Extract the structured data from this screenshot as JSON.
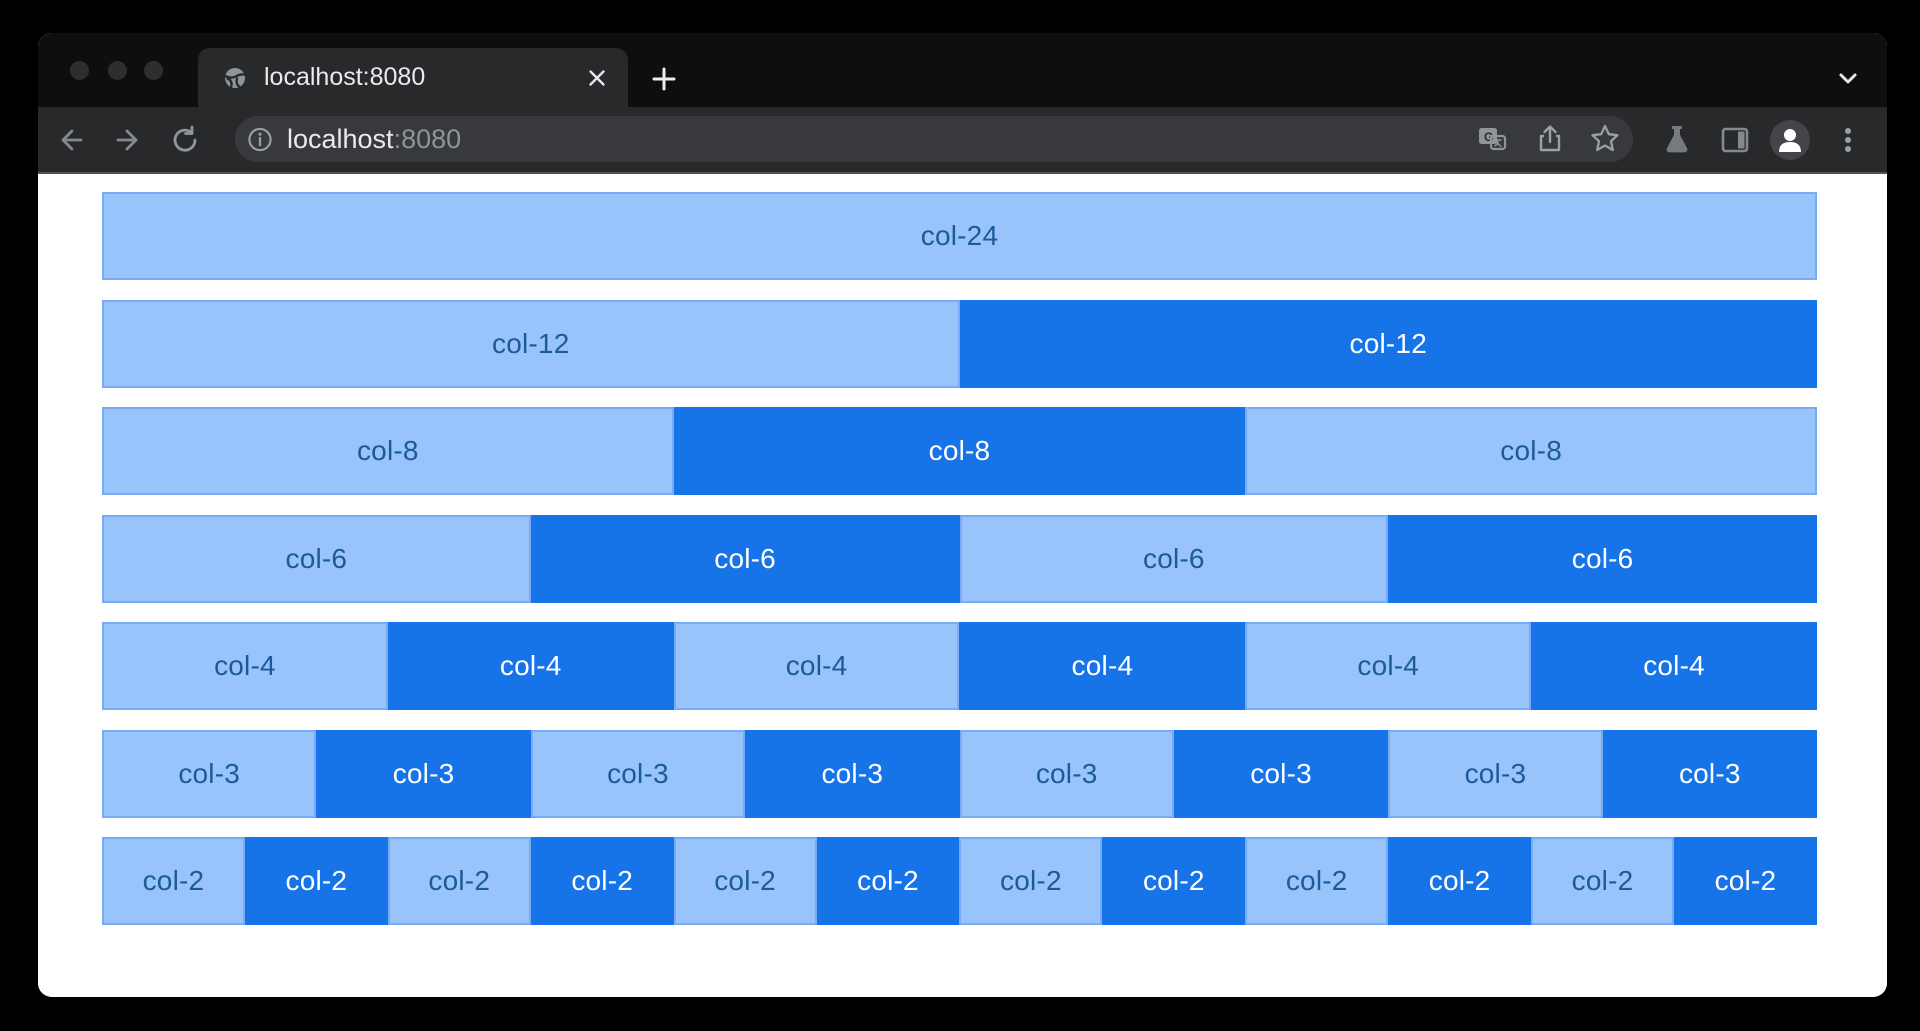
{
  "window": {
    "traffic_lights": [
      "close-button",
      "minimize-button",
      "fullscreen-button"
    ]
  },
  "tab_bar": {
    "active_tab": {
      "favicon": "globe-icon",
      "title": "localhost:8080",
      "close_icon": "close-icon"
    },
    "new_tab_icon": "plus-icon",
    "overflow_icon": "chevron-down-icon"
  },
  "toolbar": {
    "nav_icons": [
      "back-arrow-icon",
      "forward-arrow-icon",
      "reload-icon"
    ],
    "url_field": {
      "security_icon": "info-icon",
      "host": "localhost",
      "port_suffix": ":8080",
      "trailing_icons": [
        "translate-icon",
        "share-icon",
        "bookmark-star-icon"
      ]
    },
    "right_icons": [
      "experiments-flask-icon",
      "side-panel-icon",
      "profile-avatar-icon",
      "kebab-menu-icon"
    ]
  },
  "grid": {
    "rows": [
      {
        "cells": [
          {
            "span": 24,
            "tone": "light",
            "label": "col-24"
          }
        ]
      },
      {
        "cells": [
          {
            "span": 12,
            "tone": "light",
            "label": "col-12"
          },
          {
            "span": 12,
            "tone": "dark",
            "label": "col-12"
          }
        ]
      },
      {
        "cells": [
          {
            "span": 8,
            "tone": "light",
            "label": "col-8"
          },
          {
            "span": 8,
            "tone": "dark",
            "label": "col-8"
          },
          {
            "span": 8,
            "tone": "light",
            "label": "col-8"
          }
        ]
      },
      {
        "cells": [
          {
            "span": 6,
            "tone": "light",
            "label": "col-6"
          },
          {
            "span": 6,
            "tone": "dark",
            "label": "col-6"
          },
          {
            "span": 6,
            "tone": "light",
            "label": "col-6"
          },
          {
            "span": 6,
            "tone": "dark",
            "label": "col-6"
          }
        ]
      },
      {
        "cells": [
          {
            "span": 4,
            "tone": "light",
            "label": "col-4"
          },
          {
            "span": 4,
            "tone": "dark",
            "label": "col-4"
          },
          {
            "span": 4,
            "tone": "light",
            "label": "col-4"
          },
          {
            "span": 4,
            "tone": "dark",
            "label": "col-4"
          },
          {
            "span": 4,
            "tone": "light",
            "label": "col-4"
          },
          {
            "span": 4,
            "tone": "dark",
            "label": "col-4"
          }
        ]
      },
      {
        "cells": [
          {
            "span": 3,
            "tone": "light",
            "label": "col-3"
          },
          {
            "span": 3,
            "tone": "dark",
            "label": "col-3"
          },
          {
            "span": 3,
            "tone": "light",
            "label": "col-3"
          },
          {
            "span": 3,
            "tone": "dark",
            "label": "col-3"
          },
          {
            "span": 3,
            "tone": "light",
            "label": "col-3"
          },
          {
            "span": 3,
            "tone": "dark",
            "label": "col-3"
          },
          {
            "span": 3,
            "tone": "light",
            "label": "col-3"
          },
          {
            "span": 3,
            "tone": "dark",
            "label": "col-3"
          }
        ]
      },
      {
        "cells": [
          {
            "span": 2,
            "tone": "light",
            "label": "col-2"
          },
          {
            "span": 2,
            "tone": "dark",
            "label": "col-2"
          },
          {
            "span": 2,
            "tone": "light",
            "label": "col-2"
          },
          {
            "span": 2,
            "tone": "dark",
            "label": "col-2"
          },
          {
            "span": 2,
            "tone": "light",
            "label": "col-2"
          },
          {
            "span": 2,
            "tone": "dark",
            "label": "col-2"
          },
          {
            "span": 2,
            "tone": "light",
            "label": "col-2"
          },
          {
            "span": 2,
            "tone": "dark",
            "label": "col-2"
          },
          {
            "span": 2,
            "tone": "light",
            "label": "col-2"
          },
          {
            "span": 2,
            "tone": "dark",
            "label": "col-2"
          },
          {
            "span": 2,
            "tone": "light",
            "label": "col-2"
          },
          {
            "span": 2,
            "tone": "dark",
            "label": "col-2"
          }
        ]
      }
    ]
  },
  "colors": {
    "light": "#98c4fb",
    "light_border": "#77abf5",
    "light_text": "#1c5a99",
    "dark": "#1674e8",
    "dark_text": "#ffffff",
    "chrome_frame": "#0e0e0f",
    "chrome_toolbar": "#28292b",
    "url_pill": "#37393c"
  }
}
